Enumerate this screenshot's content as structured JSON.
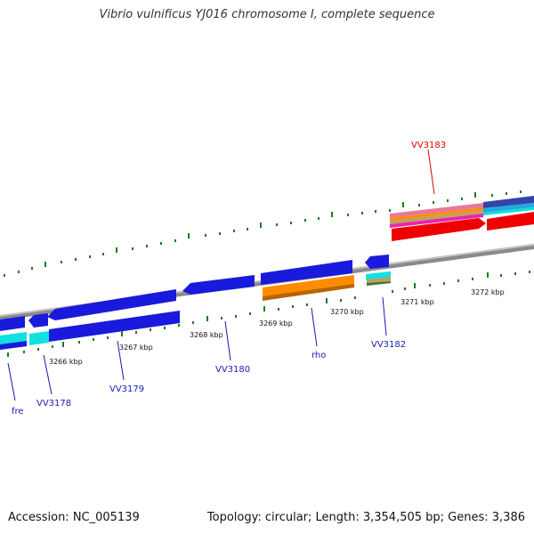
{
  "title": "Vibrio vulnificus YJ016 chromosome I, complete sequence",
  "footer": {
    "accession": "Accession: NC_005139",
    "summary": "Topology: circular; Length: 3,354,505 bp; Genes: 3,386"
  },
  "colors": {
    "backbone": "#8a8a8a",
    "tick": "#1e7a1e",
    "gene_blue": "#1a1add",
    "cyan": "#10e0e0",
    "orange": "#ff8c00",
    "red": "#ee0000",
    "label_blue": "#1a1ab0",
    "label_red": "#dd0000"
  },
  "ticks": [
    {
      "label": "3266 kbp"
    },
    {
      "label": "3267 kbp"
    },
    {
      "label": "3268 kbp"
    },
    {
      "label": "3269 kbp"
    },
    {
      "label": "3270 kbp"
    },
    {
      "label": "3271 kbp"
    },
    {
      "label": "3272 kbp"
    }
  ],
  "genes": [
    {
      "name": "fre"
    },
    {
      "name": "VV3178"
    },
    {
      "name": "VV3179"
    },
    {
      "name": "VV3180"
    },
    {
      "name": "rho"
    },
    {
      "name": "VV3182"
    },
    {
      "name": "VV3183"
    }
  ]
}
